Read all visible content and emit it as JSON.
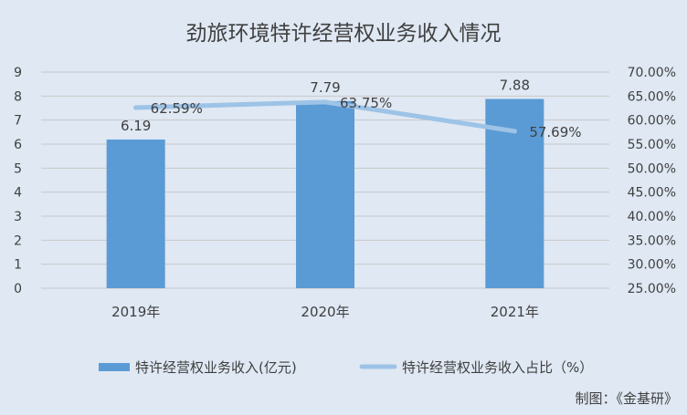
{
  "chart_data": {
    "type": "bar",
    "title": "劲旅环境特许经营权业务收入情况",
    "categories": [
      "2019年",
      "2020年",
      "2021年"
    ],
    "series": [
      {
        "name": "特许经营权业务收入(亿元)",
        "chart_type": "bar",
        "axis": "left",
        "values": [
          6.19,
          7.79,
          7.88
        ],
        "data_labels": [
          "6.19",
          "7.79",
          "7.88"
        ],
        "color": "#5b9bd5"
      },
      {
        "name": "特许经营权业务收入占比（%）",
        "chart_type": "line",
        "axis": "right",
        "values": [
          62.59,
          63.75,
          57.69
        ],
        "data_labels": [
          "62.59%",
          "63.75%",
          "57.69%"
        ],
        "color": "#9dc3e6"
      }
    ],
    "y_left": {
      "ylim": [
        0,
        9
      ],
      "ticks": [
        0,
        1,
        2,
        3,
        4,
        5,
        6,
        7,
        8,
        9
      ],
      "tick_labels": [
        "0",
        "1",
        "2",
        "3",
        "4",
        "5",
        "6",
        "7",
        "8",
        "9"
      ]
    },
    "y_right": {
      "ylim": [
        25,
        70
      ],
      "ticks": [
        25,
        30,
        35,
        40,
        45,
        50,
        55,
        60,
        65,
        70
      ],
      "tick_labels": [
        "25.00%",
        "30.00%",
        "35.00%",
        "40.00%",
        "45.00%",
        "50.00%",
        "55.00%",
        "60.00%",
        "65.00%",
        "70.00%"
      ]
    },
    "grid": true,
    "legend_position": "bottom",
    "credit": "制图：《金基研》"
  },
  "colors": {
    "background": "#dfe8f3",
    "title": "#404040",
    "text": "#404040",
    "grid": "#c9c9c9"
  }
}
